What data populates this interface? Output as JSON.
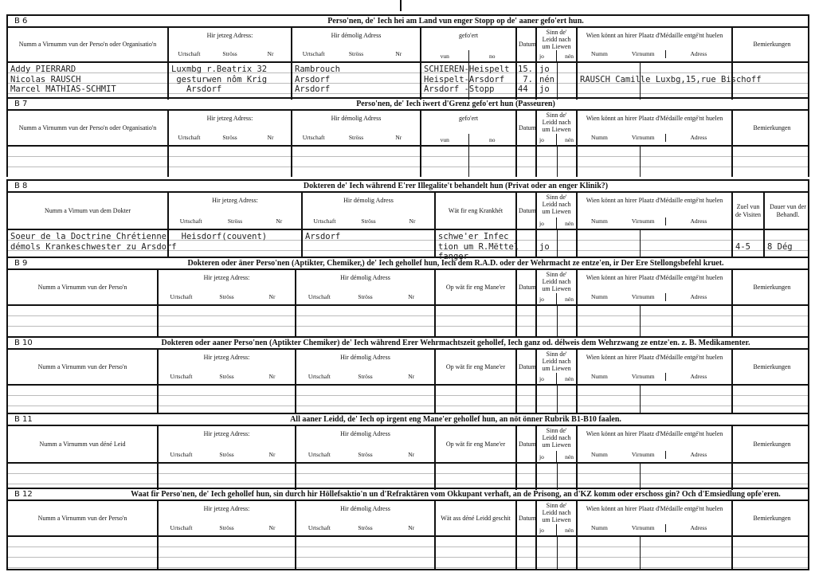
{
  "common": {
    "jetzeg": {
      "label": "Hir jetzeg Adress:",
      "sub": [
        "Urtschaft",
        "Ströss",
        "Nr"
      ]
    },
    "demolig": {
      "label": "Hir démolig Adress",
      "sub": [
        "Urtschaft",
        "Ströss",
        "Nr"
      ]
    },
    "gefoert": {
      "label": "gefo'ert",
      "sub": [
        "vun",
        "no"
      ]
    },
    "datum": {
      "label": "Datum"
    },
    "sinn": {
      "label": "Sinn de' Leidd nach um Liewen",
      "sub": [
        "jo",
        "nén"
      ]
    },
    "wien": {
      "label": "Wien könnt an hirer Plaatz d'Médaille entgé'nt huelen",
      "sub": [
        "Numm",
        "Virnumm",
        "Adress"
      ]
    },
    "bemierkungen": {
      "label": "Bemierkungen"
    },
    "krankhet": {
      "label": "Wät fir eng Krankhét"
    },
    "zuel": {
      "label": "Zuel vun de Visiten"
    },
    "dauer": {
      "label": "Dauer vun der Behandl."
    },
    "opwat": {
      "label": "Op wät fir eng Mane'er"
    },
    "watass": {
      "label": "Wät ass déné Leidd geschit"
    }
  },
  "sections": [
    {
      "label": "B 6",
      "title": "Perso'nen, de' Iech hei am Land vun enger Stopp  op de' aaner gefo'ert hun.",
      "name_label": "Numm a Virnumm vun der Perso'n oder Organisatio'n",
      "entries": {
        "name": [
          "Addy PIERRARD",
          "Nicolas RAUSCH",
          "Marcel MATHIAS-SCHMIT"
        ],
        "jetzeg": [
          "Luxmbg r.Beatrix 32",
          " gesturwen nôm Krig",
          "   Arsdorf"
        ],
        "demolig": [
          "Rambrouch",
          "Arsdorf",
          "Arsdorf"
        ],
        "gefoert": [
          "SCHIEREN-Heispelt",
          "Heispelt-Arsdorf",
          "Arsdorf -Stopp"
        ],
        "datum": [
          "15.",
          " 7.",
          "44"
        ],
        "sinn": [
          "jo",
          "nén",
          "jo"
        ],
        "wien": [
          "",
          "RAUSCH Camille Luxbg,15,rue Bischoff",
          ""
        ]
      }
    },
    {
      "label": "B 7",
      "title": "Perso'nen, de' Iech iwert d'Grenz gefo'ert hun (Passeuren)",
      "name_label": "Numm a Virnumm vun der Perso'n oder Organisatio'n",
      "entries": {}
    },
    {
      "label": "B 8",
      "title": "Dokteren de' Iech während E'rer Illegalite't behandelt hun (Privat oder an enger Klinik?)",
      "name_label": "Numm a Virnum vun dem Dokter",
      "entries": {
        "name": [
          "Soeur de la Doctrine Chrétienne",
          "démols Krankeschwester zu Arsdorf"
        ],
        "jetzeg": [
          "  Heisdorf(couvent)"
        ],
        "demolig": [
          "Arsdorf"
        ],
        "krankhet": [
          "schwe'er Infec",
          "tion um R.Mëttel",
          "fanger"
        ],
        "sinn": [
          "",
          "jo"
        ],
        "zuel": [
          "",
          "4-5"
        ],
        "dauer": [
          "",
          "8 Dég"
        ]
      }
    },
    {
      "label": "B 9",
      "title": "Dokteren oder äner Perso'nen (Aptikter, Chemiker,) de' Iech gehollef hun, Iech dem R.A.D. oder der Wehrmacht ze entze'en, ir Der Ere Stellongsbefehl kruet.",
      "name_label": "Numm a Virnumm vun der Perso'n",
      "entries": {}
    },
    {
      "label": "B 10",
      "title": "Dokteren oder aaner Perso'nen (Aptikter Chemiker) de' Iech während Erer Wehrmachtszeit gehollef, Iech ganz od. délweis dem Wehrzwang ze entze'en. z. B. Medikamenter.",
      "name_label": "Numm a Virnumm vun der Perso'n",
      "entries": {}
    },
    {
      "label": "B 11",
      "title": "All aaner Leidd, de' Iech op irgent eng Mane'er gehollef hun, an nöt önner Rubrik B1-B10 faalen.",
      "name_label": "Numm a Virnumm vun déné Leid",
      "entries": {}
    },
    {
      "label": "B 12",
      "title": "Waat fir Perso'nen, de' Iech gehollef hun, sin durch hir Höllefsaktio'n un d'Refraktären vom Okkupant verhaft, an de Prisong, an d'KZ komm oder  erschoss gin? Och d'Emsiedlung opfe'eren.",
      "name_label": "Numm a Virnumm vun der Perso'n",
      "entries": {}
    }
  ]
}
